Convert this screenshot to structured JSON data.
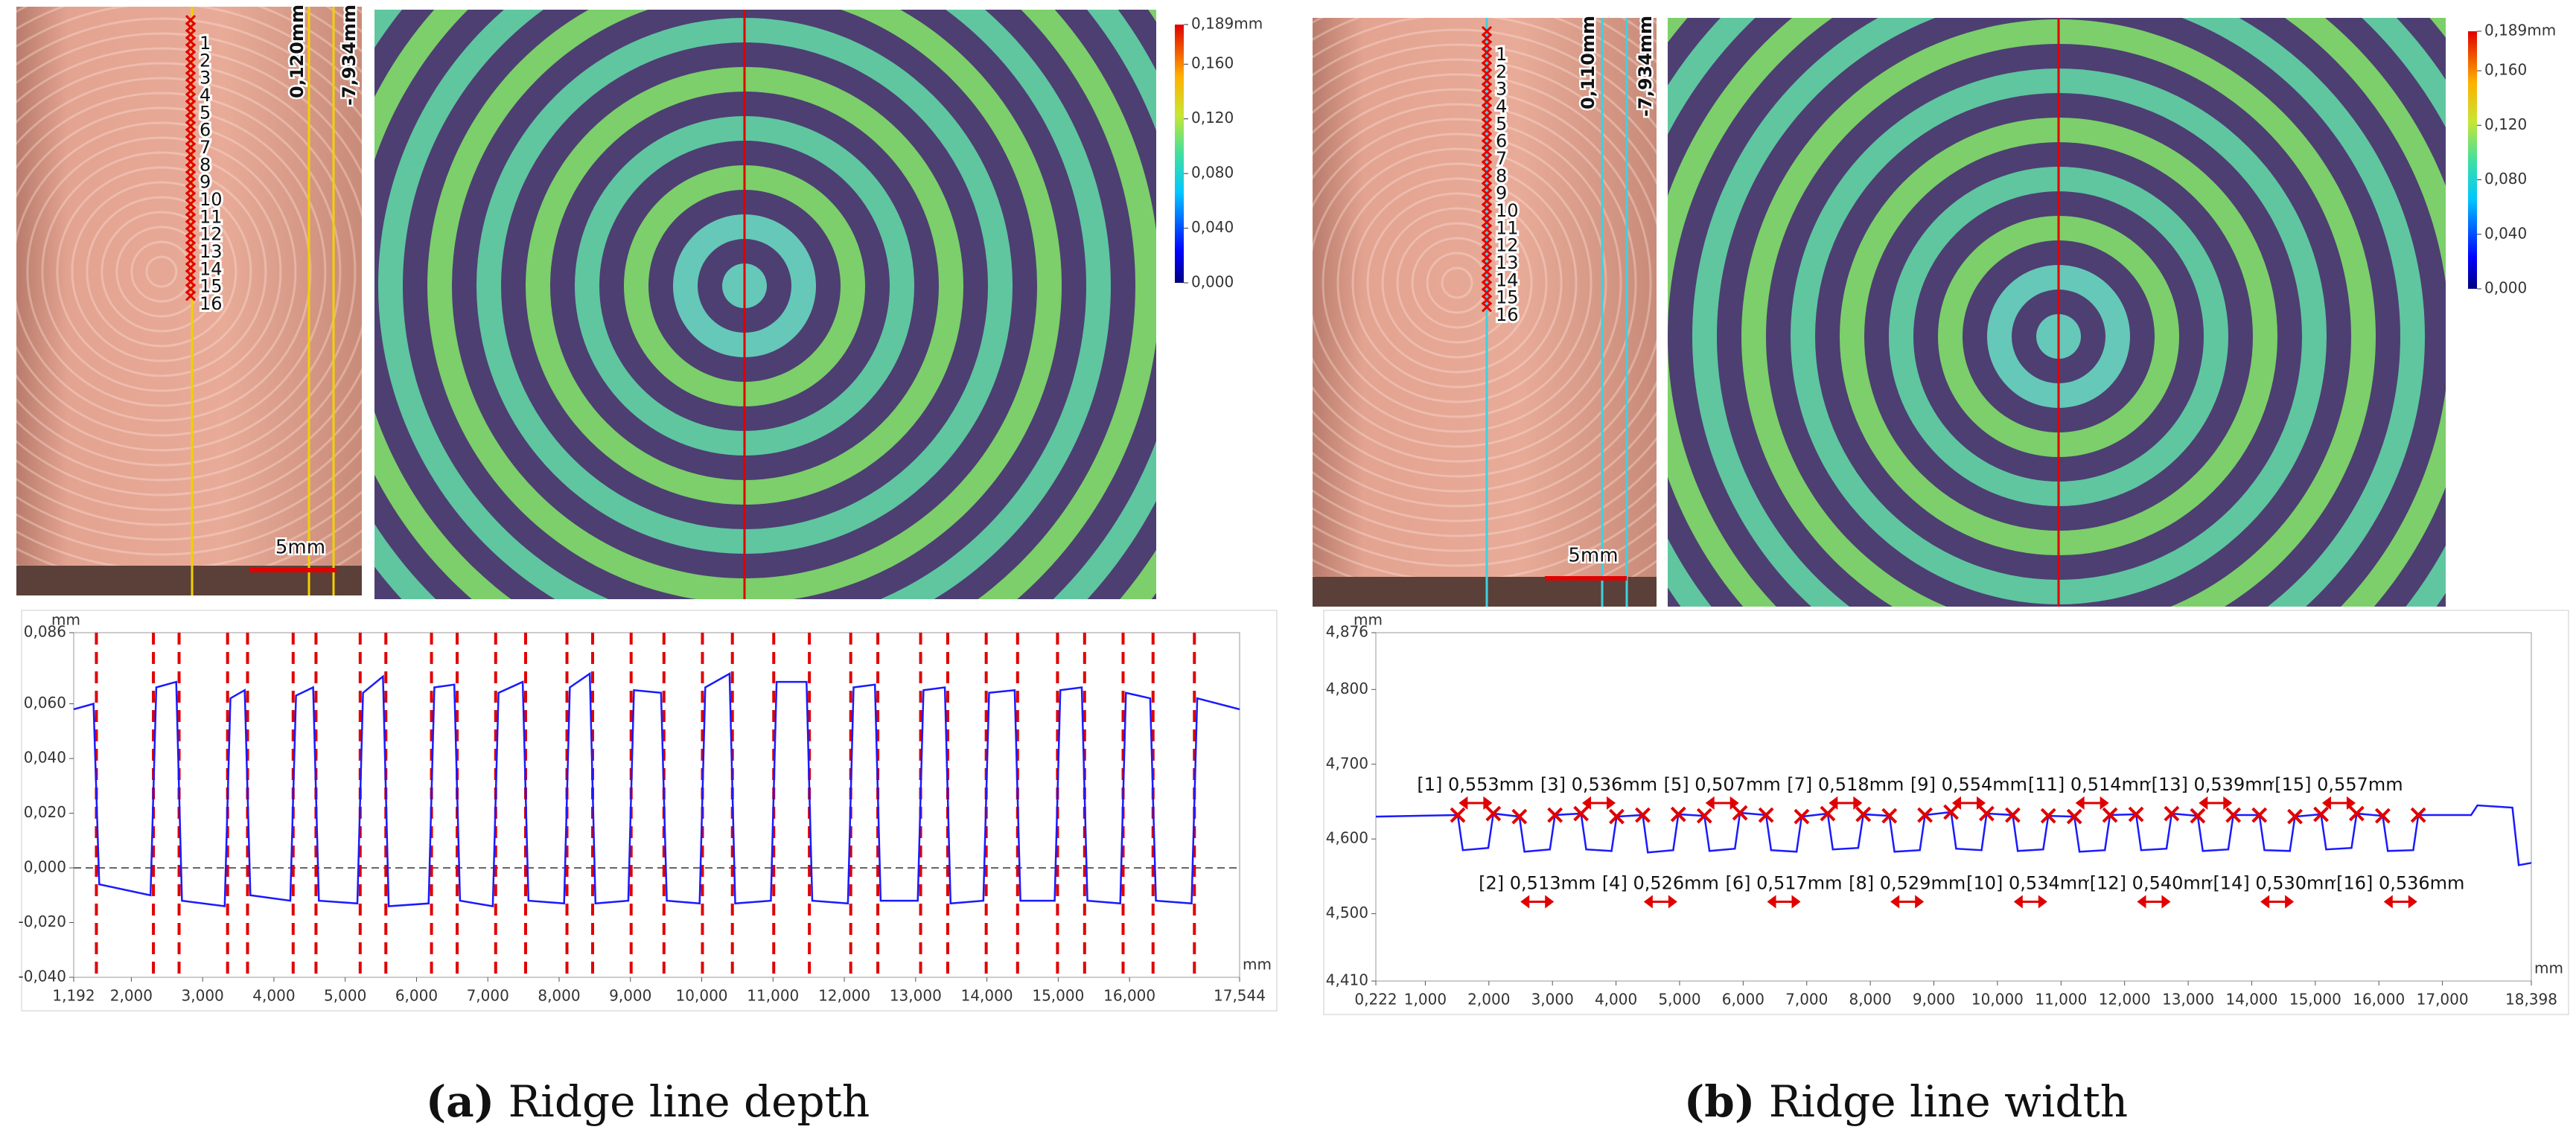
{
  "figure": {
    "panels": [
      {
        "letter": "(a)",
        "caption": "Ridge line depth",
        "photo": {
          "width_label": "0,120mm",
          "offset_label": "-7,934mm",
          "scale_label": "5mm",
          "point_labels": [
            "1",
            "2",
            "3",
            "4",
            "5",
            "6",
            "7",
            "8",
            "9",
            "10",
            "11",
            "12",
            "13",
            "14",
            "15",
            "16"
          ]
        },
        "colorbar": {
          "lim": [
            0,
            0.189
          ],
          "ticks": [
            {
              "value": 0.189,
              "label": "0,189mm"
            },
            {
              "value": 0.16,
              "label": "0,160"
            },
            {
              "value": 0.12,
              "label": "0,120"
            },
            {
              "value": 0.08,
              "label": "0,080"
            },
            {
              "value": 0.04,
              "label": "0,040"
            },
            {
              "value": 0,
              "label": "0,000"
            }
          ]
        }
      },
      {
        "letter": "(b)",
        "caption": "Ridge line width",
        "photo": {
          "width_label": "0,110mm",
          "offset_label": "-7,934mm",
          "scale_label": "5mm",
          "point_labels": [
            "1",
            "2",
            "3",
            "4",
            "5",
            "6",
            "7",
            "8",
            "9",
            "10",
            "11",
            "12",
            "13",
            "14",
            "15",
            "16"
          ]
        },
        "colorbar": {
          "lim": [
            0,
            0.189
          ],
          "ticks": [
            {
              "value": 0.189,
              "label": "0,189mm"
            },
            {
              "value": 0.16,
              "label": "0,160"
            },
            {
              "value": 0.12,
              "label": "0,120"
            },
            {
              "value": 0.08,
              "label": "0,080"
            },
            {
              "value": 0.04,
              "label": "0,040"
            },
            {
              "value": 0,
              "label": "0,000"
            }
          ]
        }
      }
    ]
  },
  "chart_data": [
    {
      "type": "line",
      "xlabel": "mm",
      "ylabel": "mm",
      "reference_line": 0,
      "xlim": [
        1.192,
        17.544
      ],
      "xticks": [
        {
          "value": 1.192,
          "label": "1,192"
        },
        {
          "value": 2,
          "label": "2,000"
        },
        {
          "value": 3,
          "label": "3,000"
        },
        {
          "value": 4,
          "label": "4,000"
        },
        {
          "value": 5,
          "label": "5,000"
        },
        {
          "value": 6,
          "label": "6,000"
        },
        {
          "value": 7,
          "label": "7,000"
        },
        {
          "value": 8,
          "label": "8,000"
        },
        {
          "value": 9,
          "label": "9,000"
        },
        {
          "value": 10,
          "label": "10,000"
        },
        {
          "value": 11,
          "label": "11,000"
        },
        {
          "value": 12,
          "label": "12,000"
        },
        {
          "value": 13,
          "label": "13,000"
        },
        {
          "value": 14,
          "label": "14,000"
        },
        {
          "value": 15,
          "label": "15,000"
        },
        {
          "value": 16,
          "label": "16,000"
        },
        {
          "value": 17.544,
          "label": "17,544"
        }
      ],
      "ylim": [
        -0.04,
        0.086
      ],
      "yticks": [
        {
          "value": -0.04,
          "label": "-0,040"
        },
        {
          "value": -0.02,
          "label": "-0,020"
        },
        {
          "value": 0,
          "label": "0,000"
        },
        {
          "value": 0.02,
          "label": "0,020"
        },
        {
          "value": 0.04,
          "label": "0,040"
        },
        {
          "value": 0.06,
          "label": "0,060"
        },
        {
          "value": 0.086,
          "label": "0,086"
        }
      ],
      "measure_x": [
        1.51,
        2.31,
        2.67,
        3.35,
        3.63,
        4.27,
        4.59,
        5.21,
        5.57,
        6.21,
        6.57,
        7.11,
        7.53,
        8.11,
        8.47,
        9.01,
        9.47,
        10.01,
        10.43,
        11.01,
        11.51,
        12.09,
        12.47,
        13.07,
        13.45,
        13.99,
        14.43,
        14.99,
        15.37,
        15.91,
        16.33,
        16.91
      ],
      "x": [
        1.192,
        1.47,
        1.55,
        2.27,
        2.35,
        2.63,
        2.71,
        3.31,
        3.39,
        3.59,
        3.67,
        4.23,
        4.31,
        4.55,
        4.63,
        5.17,
        5.25,
        5.53,
        5.61,
        6.17,
        6.25,
        6.53,
        6.61,
        7.07,
        7.15,
        7.49,
        7.57,
        8.07,
        8.15,
        8.43,
        8.51,
        8.97,
        9.05,
        9.43,
        9.51,
        9.97,
        10.05,
        10.39,
        10.47,
        10.97,
        11.05,
        11.47,
        11.55,
        12.05,
        12.13,
        12.43,
        12.51,
        13.03,
        13.11,
        13.41,
        13.49,
        13.95,
        14.03,
        14.39,
        14.47,
        14.95,
        15.03,
        15.33,
        15.41,
        15.87,
        15.95,
        16.29,
        16.37,
        16.87,
        16.95,
        17.544
      ],
      "series": [
        {
          "color": "#1a1aff",
          "values": [
            0.058,
            0.06,
            -0.006,
            -0.01,
            0.066,
            0.068,
            -0.012,
            -0.014,
            0.062,
            0.065,
            -0.01,
            -0.012,
            0.063,
            0.066,
            -0.012,
            -0.013,
            0.064,
            0.07,
            -0.014,
            -0.013,
            0.066,
            0.067,
            -0.012,
            -0.014,
            0.064,
            0.068,
            -0.012,
            -0.013,
            0.066,
            0.071,
            -0.013,
            -0.012,
            0.065,
            0.064,
            -0.012,
            -0.013,
            0.066,
            0.071,
            -0.013,
            -0.012,
            0.068,
            0.068,
            -0.012,
            -0.013,
            0.066,
            0.067,
            -0.012,
            -0.012,
            0.065,
            0.066,
            -0.013,
            -0.012,
            0.064,
            0.065,
            -0.012,
            -0.012,
            0.065,
            0.066,
            -0.012,
            -0.013,
            0.064,
            0.062,
            -0.012,
            -0.013,
            0.062,
            0.058
          ]
        }
      ]
    },
    {
      "type": "line",
      "xlabel": "mm",
      "ylabel": "mm",
      "xlim": [
        0.222,
        18.398
      ],
      "xticks": [
        {
          "value": 0.222,
          "label": "0,222"
        },
        {
          "value": 1,
          "label": "1,000"
        },
        {
          "value": 2,
          "label": "2,000"
        },
        {
          "value": 3,
          "label": "3,000"
        },
        {
          "value": 4,
          "label": "4,000"
        },
        {
          "value": 5,
          "label": "5,000"
        },
        {
          "value": 6,
          "label": "6,000"
        },
        {
          "value": 7,
          "label": "7,000"
        },
        {
          "value": 8,
          "label": "8,000"
        },
        {
          "value": 9,
          "label": "9,000"
        },
        {
          "value": 10,
          "label": "10,000"
        },
        {
          "value": 11,
          "label": "11,000"
        },
        {
          "value": 12,
          "label": "12,000"
        },
        {
          "value": 13,
          "label": "13,000"
        },
        {
          "value": 14,
          "label": "14,000"
        },
        {
          "value": 15,
          "label": "15,000"
        },
        {
          "value": 16,
          "label": "16,000"
        },
        {
          "value": 17,
          "label": "17,000"
        },
        {
          "value": 18.398,
          "label": "18,398"
        }
      ],
      "ylim": [
        4.41,
        4.876
      ],
      "yticks": [
        {
          "value": 4.41,
          "label": "4,410"
        },
        {
          "value": 4.5,
          "label": "4,500"
        },
        {
          "value": 4.6,
          "label": "4,600"
        },
        {
          "value": 4.7,
          "label": "4,700"
        },
        {
          "value": 4.8,
          "label": "4,800"
        },
        {
          "value": 4.876,
          "label": "4,876"
        }
      ],
      "annotations": [
        "[1] 0,553mm",
        "[2] 0,513mm",
        "[3] 0,536mm",
        "[4] 0,526mm",
        "[5] 0,507mm",
        "[6] 0,517mm",
        "[7] 0,518mm",
        "[8] 0,529mm",
        "[9] 0,554mm",
        "[10] 0,534mm",
        "[11] 0,514mm",
        "[12] 0,540mm",
        "[13] 0,539mm",
        "[14] 0,530mm",
        "[15] 0,557mm",
        "[16] 0,536mm"
      ],
      "x": [
        0.222,
        1.51,
        1.59,
        1.99,
        2.07,
        2.48,
        2.56,
        2.96,
        3.04,
        3.45,
        3.53,
        3.93,
        4.01,
        4.42,
        4.5,
        4.9,
        4.98,
        5.39,
        5.47,
        5.87,
        5.95,
        6.36,
        6.44,
        6.84,
        6.92,
        7.33,
        7.41,
        7.81,
        7.89,
        8.3,
        8.38,
        8.78,
        8.86,
        9.27,
        9.35,
        9.75,
        9.83,
        10.24,
        10.32,
        10.72,
        10.8,
        11.21,
        11.29,
        11.69,
        11.77,
        12.18,
        12.26,
        12.66,
        12.74,
        13.15,
        13.23,
        13.63,
        13.71,
        14.12,
        14.2,
        14.6,
        14.68,
        15.09,
        15.17,
        15.57,
        15.65,
        16.06,
        16.14,
        16.54,
        16.62,
        17.45,
        17.55,
        18.1,
        18.2,
        18.398
      ],
      "series": [
        {
          "color": "#1a1aff",
          "values": [
            4.63,
            4.632,
            4.585,
            4.588,
            4.634,
            4.63,
            4.583,
            4.586,
            4.632,
            4.634,
            4.586,
            4.584,
            4.63,
            4.632,
            4.582,
            4.585,
            4.633,
            4.631,
            4.584,
            4.587,
            4.635,
            4.632,
            4.585,
            4.583,
            4.63,
            4.634,
            4.586,
            4.588,
            4.633,
            4.631,
            4.583,
            4.585,
            4.632,
            4.636,
            4.587,
            4.585,
            4.634,
            4.632,
            4.584,
            4.586,
            4.631,
            4.63,
            4.583,
            4.585,
            4.632,
            4.633,
            4.585,
            4.587,
            4.634,
            4.631,
            4.584,
            4.586,
            4.632,
            4.632,
            4.585,
            4.584,
            4.63,
            4.633,
            4.586,
            4.588,
            4.634,
            4.631,
            4.584,
            4.585,
            4.632,
            4.632,
            4.645,
            4.642,
            4.565,
            4.568
          ]
        }
      ]
    }
  ]
}
